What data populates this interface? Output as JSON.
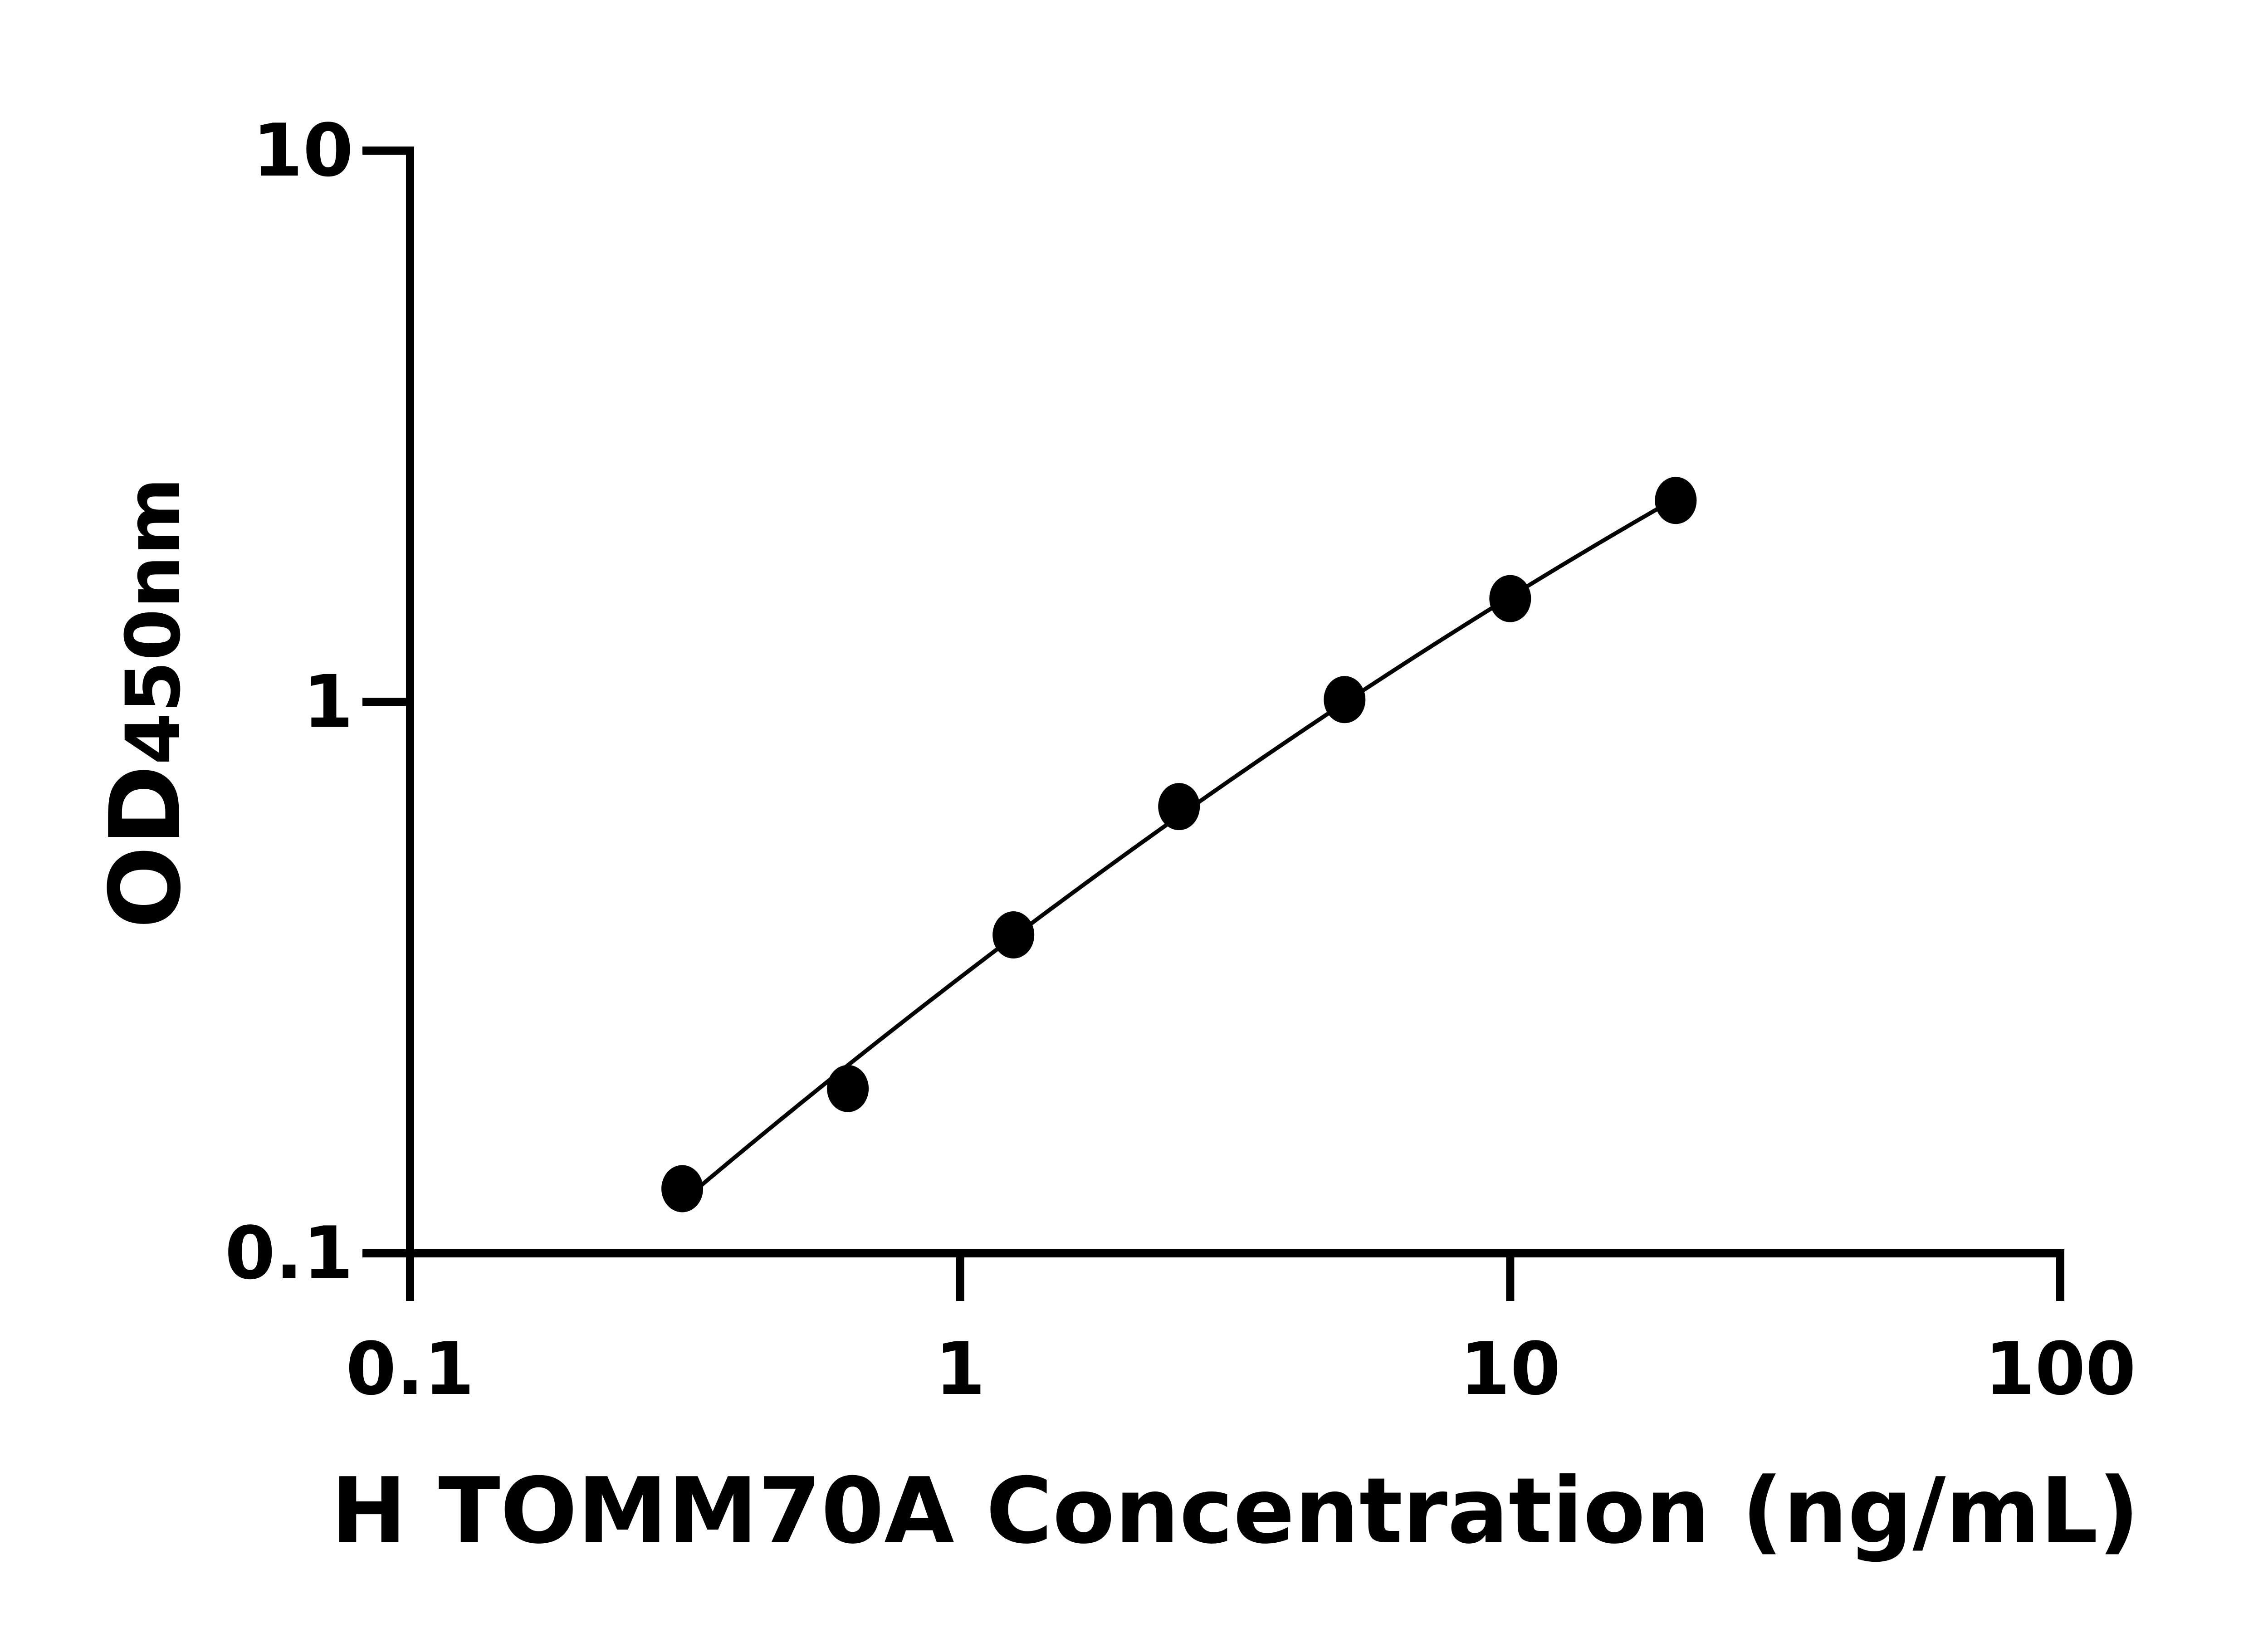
{
  "chart_data": {
    "type": "scatter",
    "title": "",
    "xlabel": "H TOMM70A Concentration (ng/mL)",
    "ylabel_main": "OD",
    "ylabel_sub": "450nm",
    "x_scale": "log",
    "y_scale": "log",
    "xlim": [
      0.1,
      100
    ],
    "ylim": [
      0.1,
      10
    ],
    "x_ticks": [
      "0.1",
      "1",
      "10",
      "100"
    ],
    "y_ticks": [
      "0.1",
      "1",
      "10"
    ],
    "grid": false,
    "fit_curve": true,
    "marker_color": "#000000",
    "x": [
      0.3125,
      0.625,
      1.25,
      2.5,
      5,
      10,
      20
    ],
    "y": [
      0.131,
      0.199,
      0.378,
      0.646,
      1.01,
      1.54,
      2.32
    ]
  }
}
